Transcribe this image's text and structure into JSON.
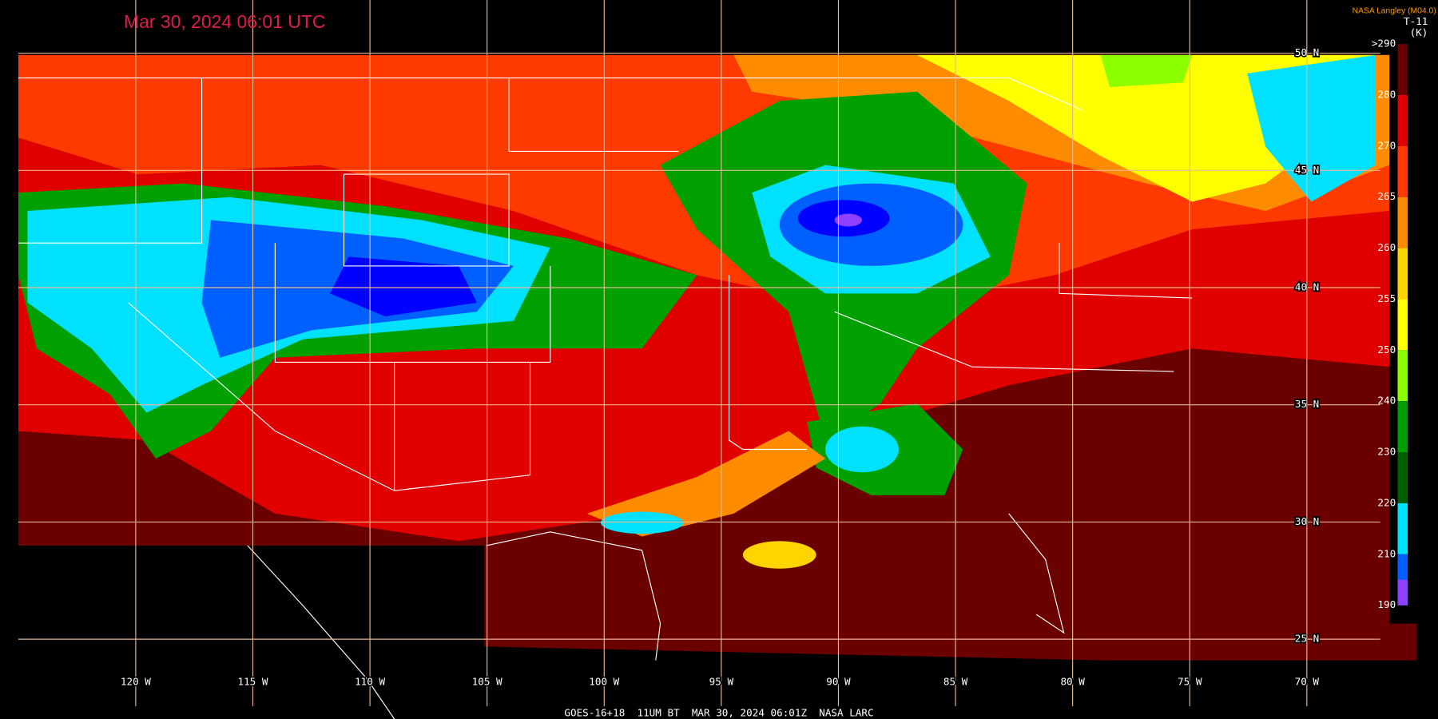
{
  "header": {
    "timestamp": "Mar 30, 2024 06:01 UTC",
    "credit": "NASA Langley (M04.0)",
    "product": "T-11",
    "unit": "(K)"
  },
  "latitude_labels": [
    "50 N",
    "45 N",
    "40 N",
    "35 N",
    "30 N",
    "25 N"
  ],
  "longitude_labels": [
    "120 W",
    "115 W",
    "110 W",
    "105 W",
    "100 W",
    "95 W",
    "90 W",
    "85 W",
    "80 W",
    "75 W",
    "70 W"
  ],
  "color_scale": [
    {
      "label": ">290",
      "color": "#6b0000"
    },
    {
      "label": "280",
      "color": "#e00000"
    },
    {
      "label": "270",
      "color": "#ff3a00"
    },
    {
      "label": "265",
      "color": "#ff8c00"
    },
    {
      "label": "260",
      "color": "#ffd400"
    },
    {
      "label": "255",
      "color": "#ffff00"
    },
    {
      "label": "250",
      "color": "#8cff00"
    },
    {
      "label": "240",
      "color": "#00a000"
    },
    {
      "label": "230",
      "color": "#006000"
    },
    {
      "label": "220",
      "color": "#00e0ff"
    },
    {
      "label": "210",
      "color": "#0060ff"
    },
    {
      "label": "190",
      "color": "#0000ff"
    }
  ],
  "footer": "GOES-16+18  11UM BT  MAR 30, 2024 06:01Z  NASA LARC"
}
